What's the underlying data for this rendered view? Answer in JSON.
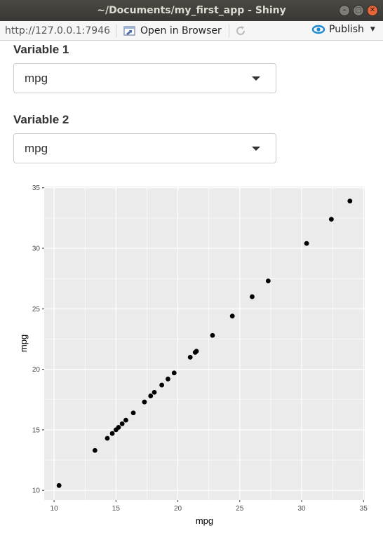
{
  "window": {
    "title": "~/Documents/my_first_app - Shiny"
  },
  "toolbar": {
    "url": "http://127.0.0.1:7946",
    "open_in_browser": "Open in Browser",
    "publish": "Publish"
  },
  "inputs": {
    "var1": {
      "label": "Variable 1",
      "value": "mpg"
    },
    "var2": {
      "label": "Variable 2",
      "value": "mpg"
    }
  },
  "colors": {
    "panel": "#ebebeb",
    "grid_major": "#ffffff",
    "point": "#000000",
    "publish_accent": "#1a8bd0"
  },
  "chart_data": {
    "type": "scatter",
    "xlabel": "mpg",
    "ylabel": "mpg",
    "xlim": [
      9.2,
      35.1
    ],
    "ylim": [
      9.2,
      35.1
    ],
    "xticks": [
      10,
      15,
      20,
      25,
      30,
      35
    ],
    "yticks": [
      10,
      15,
      20,
      25,
      30,
      35
    ],
    "grid": true,
    "points": [
      [
        10.4,
        10.4
      ],
      [
        13.3,
        13.3
      ],
      [
        14.3,
        14.3
      ],
      [
        14.7,
        14.7
      ],
      [
        15.0,
        15.0
      ],
      [
        15.2,
        15.2
      ],
      [
        15.5,
        15.5
      ],
      [
        15.8,
        15.8
      ],
      [
        16.4,
        16.4
      ],
      [
        17.3,
        17.3
      ],
      [
        17.8,
        17.8
      ],
      [
        18.1,
        18.1
      ],
      [
        18.7,
        18.7
      ],
      [
        19.2,
        19.2
      ],
      [
        19.7,
        19.7
      ],
      [
        21.0,
        21.0
      ],
      [
        21.4,
        21.4
      ],
      [
        21.5,
        21.5
      ],
      [
        22.8,
        22.8
      ],
      [
        24.4,
        24.4
      ],
      [
        26.0,
        26.0
      ],
      [
        27.3,
        27.3
      ],
      [
        30.4,
        30.4
      ],
      [
        32.4,
        32.4
      ],
      [
        33.9,
        33.9
      ]
    ]
  }
}
